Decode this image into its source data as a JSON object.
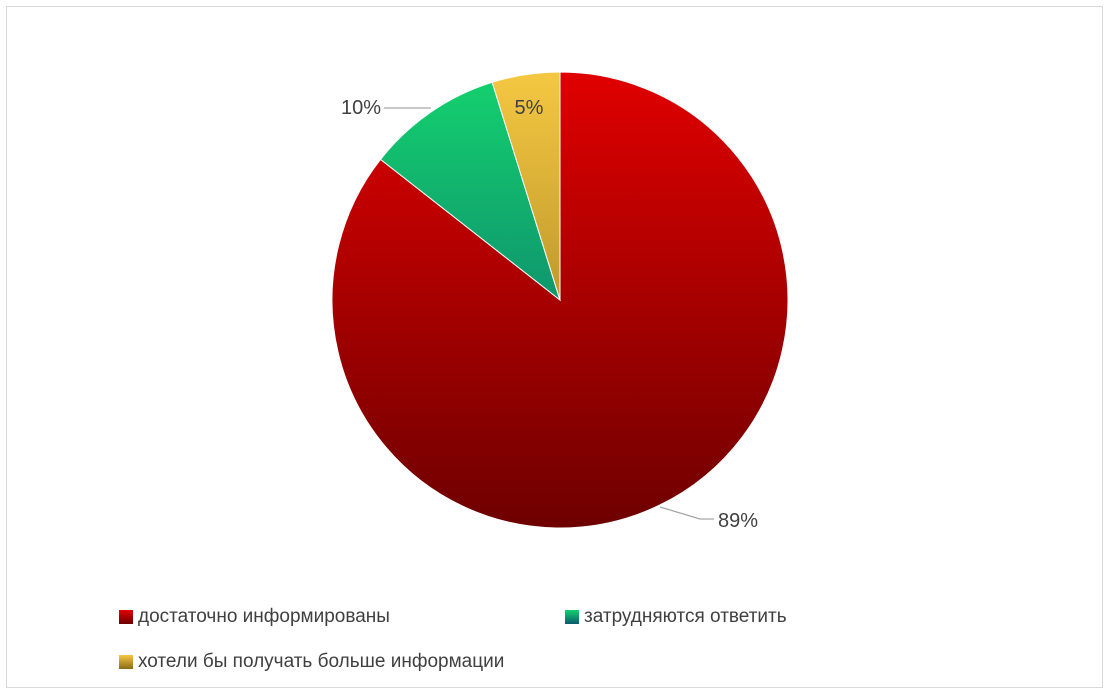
{
  "chart_data": {
    "type": "pie",
    "title": "",
    "categories": [
      "достаточно информированы",
      "затрудняются ответить",
      "хотели бы получать больше информации"
    ],
    "values": [
      89,
      10,
      5
    ],
    "value_labels": [
      "89%",
      "10%",
      "5%"
    ],
    "legend_position": "bottom",
    "colors": [
      {
        "top": "#e00000",
        "bottom": "#6e0000"
      },
      {
        "top": "#14d26e",
        "bottom": "#0a5a6e"
      },
      {
        "top": "#f5c842",
        "bottom": "#8a6a14"
      }
    ],
    "leader_line_color": "#a6a6a6"
  }
}
